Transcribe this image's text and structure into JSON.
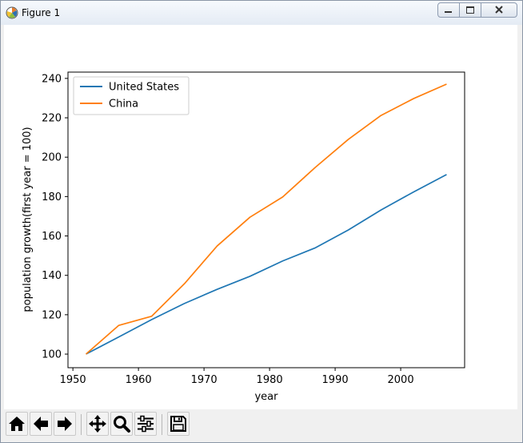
{
  "window": {
    "title": "Figure 1"
  },
  "chart_data": {
    "type": "line",
    "xlabel": "year",
    "ylabel": "population growth(first year = 100)",
    "xlim": [
      1949.25,
      2009.75
    ],
    "ylim": [
      93.1,
      243.2
    ],
    "xticks": [
      1950,
      1960,
      1970,
      1980,
      1990,
      2000
    ],
    "yticks": [
      100,
      120,
      140,
      160,
      180,
      200,
      220,
      240
    ],
    "legend_position": "upper-left",
    "grid": false,
    "x": [
      1952,
      1957,
      1962,
      1967,
      1972,
      1977,
      1982,
      1987,
      1992,
      1997,
      2002,
      2007
    ],
    "series": [
      {
        "name": "United States",
        "color": "#1f77b4",
        "values": [
          100,
          108.7,
          117.5,
          125.7,
          132.9,
          139.5,
          147.3,
          154.0,
          163.0,
          173.2,
          182.4,
          191.2
        ]
      },
      {
        "name": "China",
        "color": "#ff7f0e",
        "values": [
          100,
          114.6,
          119.2,
          135.7,
          154.9,
          169.5,
          179.8,
          194.9,
          209.0,
          221.2,
          229.8,
          237.1
        ]
      }
    ]
  },
  "toolbar": {
    "buttons": [
      {
        "name": "home-button",
        "icon": "home-icon"
      },
      {
        "name": "back-button",
        "icon": "arrow-left-icon"
      },
      {
        "name": "forward-button",
        "icon": "arrow-right-icon"
      },
      {
        "name": "pan-button",
        "icon": "move-icon"
      },
      {
        "name": "zoom-button",
        "icon": "magnifier-icon"
      },
      {
        "name": "configure-subplots-button",
        "icon": "sliders-icon"
      },
      {
        "name": "save-button",
        "icon": "floppy-disk-icon"
      }
    ]
  }
}
